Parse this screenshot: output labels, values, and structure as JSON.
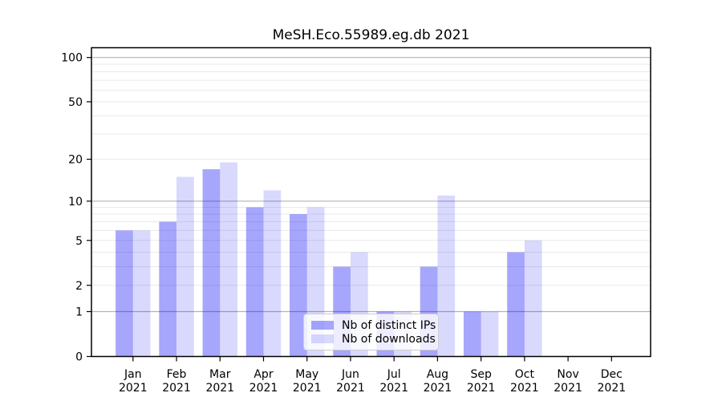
{
  "figure": {
    "title": "MeSH.Eco.55989.eg.db 2021",
    "background": "#ffffff"
  },
  "chart_data": {
    "type": "bar",
    "title": "MeSH.Eco.55989.eg.db 2021",
    "categories": [
      "Jan",
      "Feb",
      "Mar",
      "Apr",
      "May",
      "Jun",
      "Jul",
      "Aug",
      "Sep",
      "Oct",
      "Nov",
      "Dec"
    ],
    "year_label": "2021",
    "series": [
      {
        "name": "Nb of distinct IPs",
        "color": "rgba(0,0,245,0.35)",
        "values": [
          6,
          7,
          17,
          9,
          8,
          3,
          1,
          3,
          1,
          4,
          0,
          0
        ]
      },
      {
        "name": "Nb of downloads",
        "color": "rgba(0,0,245,0.15)",
        "values": [
          6,
          15,
          19,
          12,
          9,
          4,
          1,
          11,
          1,
          5,
          0,
          0
        ]
      }
    ],
    "yscale": "log1p",
    "ylim": [
      0,
      115
    ],
    "y_ticks": [
      100,
      50,
      20,
      10,
      5,
      2,
      1,
      0
    ],
    "minor_gridlines": [
      2,
      3,
      4,
      5,
      6,
      7,
      8,
      9,
      20,
      30,
      40,
      50,
      60,
      70,
      80,
      90
    ],
    "major_gridlines": [
      1,
      10,
      100
    ],
    "grid": true,
    "legend_position": "lower center",
    "colors": {
      "major_grid": "#b3b3b3",
      "minor_grid": "#e9e9e9",
      "spine": "#000000",
      "bar_distinct_ips": "rgba(0,0,245,0.35)",
      "bar_downloads": "rgba(0,0,245,0.15)",
      "legend_border": "#cccccc"
    }
  }
}
